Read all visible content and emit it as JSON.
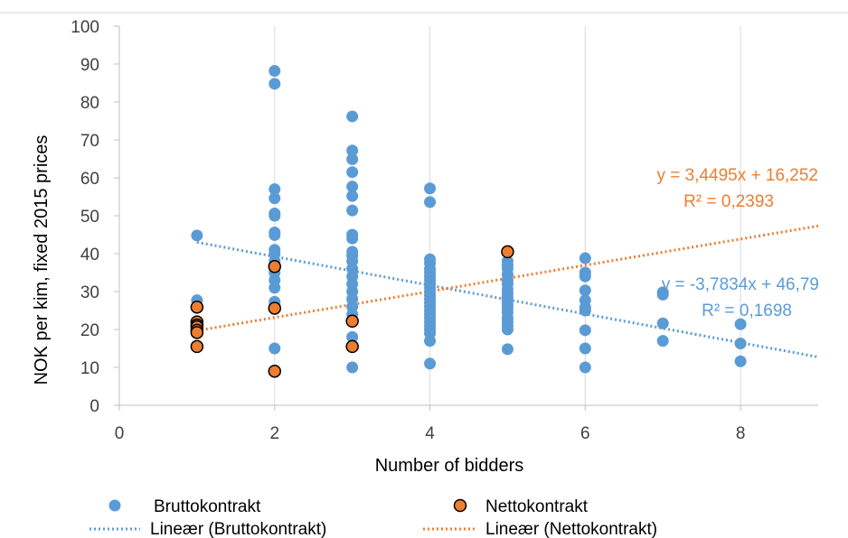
{
  "chart_data": {
    "type": "scatter",
    "xlabel": "Number of bidders",
    "ylabel": "NOK per kim, fixed 2015 prices",
    "xlim": [
      0,
      9
    ],
    "ylim": [
      0,
      100
    ],
    "xticks": [
      0,
      2,
      4,
      6,
      8
    ],
    "yticks": [
      0,
      10,
      20,
      30,
      40,
      50,
      60,
      70,
      80,
      90,
      100
    ],
    "grid": "vertical",
    "legend_position": "bottom",
    "series": [
      {
        "name": "Bruttokontrakt",
        "color": "#5b9bd5",
        "points": [
          [
            1,
            44.8
          ],
          [
            1,
            27.7
          ],
          [
            2,
            88.2
          ],
          [
            2,
            84.8
          ],
          [
            2,
            57
          ],
          [
            2,
            54.6
          ],
          [
            2,
            50.6
          ],
          [
            2,
            50
          ],
          [
            2,
            45.6
          ],
          [
            2,
            44.9
          ],
          [
            2,
            41
          ],
          [
            2,
            39.9
          ],
          [
            2,
            38
          ],
          [
            2,
            35
          ],
          [
            2,
            33
          ],
          [
            2,
            31
          ],
          [
            2,
            27.3
          ],
          [
            2,
            26.5
          ],
          [
            2,
            15
          ],
          [
            3,
            76.2
          ],
          [
            3,
            67.2
          ],
          [
            3,
            64.9
          ],
          [
            3,
            61.5
          ],
          [
            3,
            57.7
          ],
          [
            3,
            55.2
          ],
          [
            3,
            51.4
          ],
          [
            3,
            45
          ],
          [
            3,
            44
          ],
          [
            3,
            40.5
          ],
          [
            3,
            39.5
          ],
          [
            3,
            38
          ],
          [
            3,
            36
          ],
          [
            3,
            34
          ],
          [
            3,
            32
          ],
          [
            3,
            30
          ],
          [
            3,
            28
          ],
          [
            3,
            26
          ],
          [
            3,
            24
          ],
          [
            3,
            22.5
          ],
          [
            3,
            18
          ],
          [
            3,
            10
          ],
          [
            4,
            57.2
          ],
          [
            4,
            53.6
          ],
          [
            4,
            38.5
          ],
          [
            4,
            37.5
          ],
          [
            4,
            36
          ],
          [
            4,
            35
          ],
          [
            4,
            34
          ],
          [
            4,
            33
          ],
          [
            4,
            32
          ],
          [
            4,
            31
          ],
          [
            4,
            30
          ],
          [
            4,
            29
          ],
          [
            4,
            28
          ],
          [
            4,
            27
          ],
          [
            4,
            26
          ],
          [
            4,
            25
          ],
          [
            4,
            24
          ],
          [
            4,
            23
          ],
          [
            4,
            22
          ],
          [
            4,
            21
          ],
          [
            4,
            20
          ],
          [
            4,
            19
          ],
          [
            4,
            17
          ],
          [
            4,
            11
          ],
          [
            5,
            38
          ],
          [
            5,
            37
          ],
          [
            5,
            36
          ],
          [
            5,
            34.5
          ],
          [
            5,
            33
          ],
          [
            5,
            32
          ],
          [
            5,
            30.5
          ],
          [
            5,
            29.5
          ],
          [
            5,
            28.5
          ],
          [
            5,
            27.5
          ],
          [
            5,
            26.5
          ],
          [
            5,
            25.5
          ],
          [
            5,
            24.5
          ],
          [
            5,
            23
          ],
          [
            5,
            22
          ],
          [
            5,
            21
          ],
          [
            5,
            20
          ],
          [
            5,
            14.8
          ],
          [
            6,
            38.8
          ],
          [
            6,
            35
          ],
          [
            6,
            34
          ],
          [
            6,
            30.3
          ],
          [
            6,
            27.7
          ],
          [
            6,
            25.8
          ],
          [
            6,
            25
          ],
          [
            6,
            19.8
          ],
          [
            6,
            15
          ],
          [
            6,
            10
          ],
          [
            7,
            29.8
          ],
          [
            7,
            29.2
          ],
          [
            7,
            21.6
          ],
          [
            7,
            17
          ],
          [
            8,
            21.4
          ],
          [
            8,
            16.3
          ],
          [
            8,
            11.6
          ]
        ]
      },
      {
        "name": "Nettokontrakt",
        "color": "#ed7d31",
        "points": [
          [
            1,
            25.9
          ],
          [
            1,
            22
          ],
          [
            1,
            21.2
          ],
          [
            1,
            20.7
          ],
          [
            1,
            19.8
          ],
          [
            1,
            19.2
          ],
          [
            1,
            15.5
          ],
          [
            2,
            36.6
          ],
          [
            2,
            25.6
          ],
          [
            2,
            9
          ],
          [
            3,
            22.2
          ],
          [
            3,
            15.5
          ],
          [
            5,
            40.5
          ]
        ]
      }
    ],
    "trendlines": [
      {
        "name": "Lineær (Bruttokontrakt)",
        "color": "#5b9bd5",
        "slope": -3.7834,
        "intercept": 46.79,
        "x_range": [
          1,
          9
        ],
        "equation": "y = -3,7834x + 46,79",
        "r2": "R² = 0,1698"
      },
      {
        "name": "Lineær (Nettokontrakt)",
        "color": "#ed7d31",
        "slope": 3.4495,
        "intercept": 16.252,
        "x_range": [
          1,
          9
        ],
        "equation": "y = 3,4495x + 16,252",
        "r2": "R² = 0,2393"
      }
    ]
  }
}
